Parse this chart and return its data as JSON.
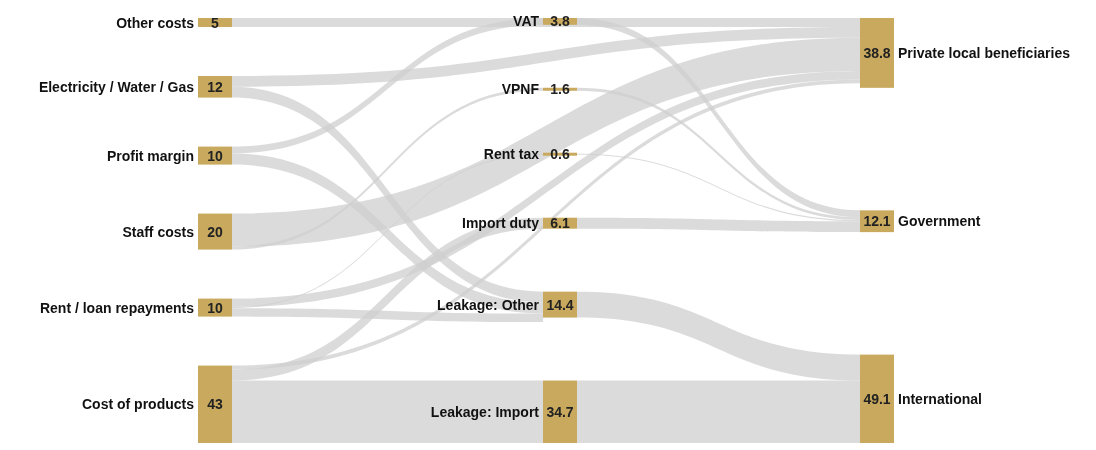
{
  "chart_data": {
    "type": "other",
    "categories": [
      "Other costs",
      "Electricity / Water / Gas",
      "Profit margin",
      "Staff costs",
      "Rent / loan repayments",
      "Cost of products",
      "VAT",
      "VPNF",
      "Rent tax",
      "Import duty",
      "Leakage: Other",
      "Leakage: Import",
      "Private local beneficiaries",
      "Government",
      "International"
    ],
    "series": [
      {
        "color": "#c8a95e",
        "values": [
          5,
          12,
          10,
          20,
          10,
          43,
          null,
          null,
          null,
          null,
          null,
          null,
          null,
          null,
          null
        ]
      },
      {
        "color": "#c8a95e",
        "values": [
          null,
          null,
          null,
          null,
          null,
          null,
          3.8,
          1.6,
          0.6,
          6.1,
          14.4,
          34.7,
          null,
          null,
          null
        ]
      },
      {
        "color": "#c8a95e",
        "values": [
          null,
          null,
          null,
          null,
          null,
          null,
          null,
          null,
          null,
          null,
          null,
          null,
          38.8,
          12.1,
          49.1
        ]
      }
    ],
    "data_labels": true
  }
}
